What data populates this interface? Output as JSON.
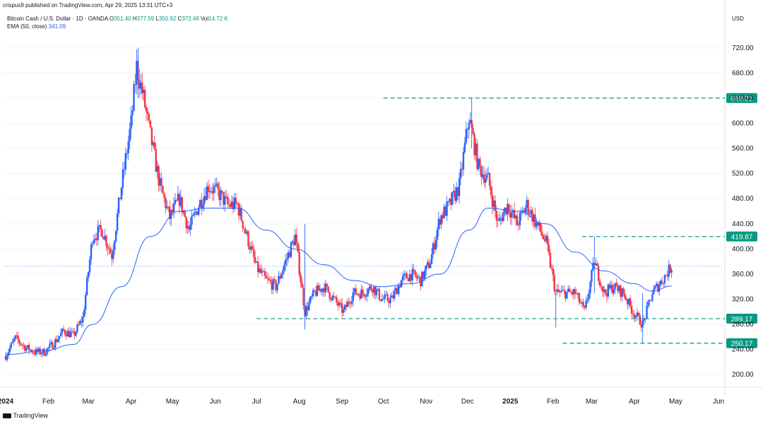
{
  "header": {
    "published": "crispus9 published on TradingView.com, Apr 29, 2025 13:31 UTC+3",
    "symbol": "Bitcoin Cash / U.S. Dollar · 1D · OANDA",
    "ohlc": {
      "o_label": "O",
      "o": "351.40",
      "h_label": "H",
      "h": "377.59",
      "l_label": "L",
      "l": "350.92",
      "c_label": "C",
      "c": "372.48",
      "vol_label": "Vol",
      "vol": "14.72 K"
    },
    "ema_label": "EMA (50, close)",
    "ema_value": "341.09"
  },
  "currency": "USD",
  "brand": "TradingView",
  "colors": {
    "up": "#2962ff",
    "down": "#f23645",
    "ema": "#2962ff",
    "level": "#089981"
  },
  "chart_data": {
    "type": "candlestick",
    "ylim": [
      180,
      740
    ],
    "y_ticks": [
      200,
      240,
      280,
      320,
      360,
      400,
      440,
      480,
      520,
      560,
      600,
      640,
      680,
      720
    ],
    "x_labels": [
      "2024",
      "Feb",
      "Mar",
      "Apr",
      "May",
      "Jun",
      "Jul",
      "Aug",
      "Sep",
      "Oct",
      "Nov",
      "Dec",
      "2025",
      "Feb",
      "Mar",
      "Apr",
      "May",
      "Jun"
    ],
    "close_path": [
      [
        "2024-01-01",
        230
      ],
      [
        "2024-01-08",
        258
      ],
      [
        "2024-01-15",
        244
      ],
      [
        "2024-01-22",
        236
      ],
      [
        "2024-01-29",
        236
      ],
      [
        "2024-02-05",
        250
      ],
      [
        "2024-02-12",
        270
      ],
      [
        "2024-02-19",
        262
      ],
      [
        "2024-02-26",
        290
      ],
      [
        "2024-03-04",
        420
      ],
      [
        "2024-03-11",
        430
      ],
      [
        "2024-03-18",
        390
      ],
      [
        "2024-03-25",
        500
      ],
      [
        "2024-04-01",
        600
      ],
      [
        "2024-04-05",
        690
      ],
      [
        "2024-04-10",
        640
      ],
      [
        "2024-04-15",
        580
      ],
      [
        "2024-04-22",
        500
      ],
      [
        "2024-04-29",
        450
      ],
      [
        "2024-05-06",
        480
      ],
      [
        "2024-05-13",
        430
      ],
      [
        "2024-05-20",
        470
      ],
      [
        "2024-05-27",
        500
      ],
      [
        "2024-06-03",
        490
      ],
      [
        "2024-06-10",
        470
      ],
      [
        "2024-06-17",
        470
      ],
      [
        "2024-06-24",
        420
      ],
      [
        "2024-07-01",
        370
      ],
      [
        "2024-07-08",
        350
      ],
      [
        "2024-07-15",
        340
      ],
      [
        "2024-07-22",
        380
      ],
      [
        "2024-07-29",
        420
      ],
      [
        "2024-08-05",
        300
      ],
      [
        "2024-08-12",
        330
      ],
      [
        "2024-08-19",
        340
      ],
      [
        "2024-08-26",
        320
      ],
      [
        "2024-09-02",
        300
      ],
      [
        "2024-09-09",
        330
      ],
      [
        "2024-09-16",
        330
      ],
      [
        "2024-09-23",
        340
      ],
      [
        "2024-09-30",
        320
      ],
      [
        "2024-10-07",
        320
      ],
      [
        "2024-10-14",
        350
      ],
      [
        "2024-10-21",
        360
      ],
      [
        "2024-10-28",
        350
      ],
      [
        "2024-11-04",
        380
      ],
      [
        "2024-11-11",
        450
      ],
      [
        "2024-11-18",
        470
      ],
      [
        "2024-11-25",
        500
      ],
      [
        "2024-12-02",
        610
      ],
      [
        "2024-12-09",
        530
      ],
      [
        "2024-12-16",
        510
      ],
      [
        "2024-12-23",
        440
      ],
      [
        "2024-12-30",
        470
      ],
      [
        "2025-01-06",
        440
      ],
      [
        "2025-01-13",
        470
      ],
      [
        "2025-01-20",
        440
      ],
      [
        "2025-01-27",
        410
      ],
      [
        "2025-02-03",
        330
      ],
      [
        "2025-02-10",
        330
      ],
      [
        "2025-02-17",
        330
      ],
      [
        "2025-02-24",
        300
      ],
      [
        "2025-03-03",
        380
      ],
      [
        "2025-03-10",
        330
      ],
      [
        "2025-03-17",
        340
      ],
      [
        "2025-03-24",
        330
      ],
      [
        "2025-03-31",
        300
      ],
      [
        "2025-04-07",
        280
      ],
      [
        "2025-04-14",
        330
      ],
      [
        "2025-04-21",
        350
      ],
      [
        "2025-04-28",
        372.48
      ]
    ],
    "spikes": [
      [
        "2024-04-06",
        720,
        640
      ],
      [
        "2024-08-05",
        440,
        272
      ],
      [
        "2024-12-04",
        640,
        560
      ],
      [
        "2025-03-03",
        419.87,
        330
      ],
      [
        "2025-04-07",
        330,
        250.17
      ],
      [
        "2025-02-03",
        330,
        275
      ]
    ],
    "ema50": [
      [
        "2024-01-01",
        232
      ],
      [
        "2024-01-29",
        238
      ],
      [
        "2024-02-19",
        248
      ],
      [
        "2024-03-04",
        280
      ],
      [
        "2024-03-25",
        340
      ],
      [
        "2024-04-15",
        420
      ],
      [
        "2024-05-06",
        460
      ],
      [
        "2024-05-27",
        465
      ],
      [
        "2024-06-17",
        465
      ],
      [
        "2024-07-08",
        430
      ],
      [
        "2024-07-29",
        400
      ],
      [
        "2024-08-19",
        375
      ],
      [
        "2024-09-09",
        350
      ],
      [
        "2024-09-30",
        340
      ],
      [
        "2024-10-21",
        345
      ],
      [
        "2024-11-11",
        360
      ],
      [
        "2024-12-02",
        430
      ],
      [
        "2024-12-16",
        465
      ],
      [
        "2025-01-06",
        460
      ],
      [
        "2025-01-27",
        440
      ],
      [
        "2025-02-17",
        395
      ],
      [
        "2025-03-10",
        365
      ],
      [
        "2025-03-31",
        345
      ],
      [
        "2025-04-14",
        333
      ],
      [
        "2025-04-28",
        341.09
      ]
    ],
    "levels": [
      {
        "value": 640.21,
        "label": "640.21",
        "x_start": "2024-10-01"
      },
      {
        "value": 419.87,
        "label": "419.87",
        "x_start": "2025-02-22"
      },
      {
        "value": 289.17,
        "label": "289.17",
        "x_start": "2024-07-01"
      },
      {
        "value": 250.17,
        "label": "250.17",
        "x_start": "2025-02-08"
      }
    ],
    "current_price": 372.48
  }
}
